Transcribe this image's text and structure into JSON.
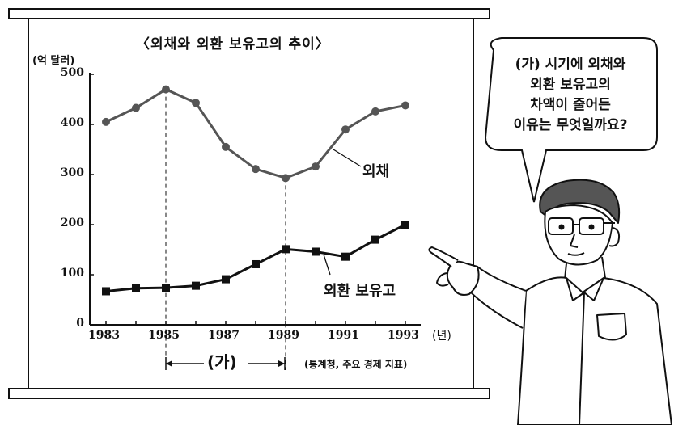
{
  "chart_data": {
    "type": "line",
    "title": "〈외채와 외환 보유고의 추이〉",
    "ylabel": "(억 달러)",
    "xunit": "(년)",
    "ylim": [
      0,
      500
    ],
    "yticks": [
      "500",
      "400",
      "300",
      "200",
      "100",
      "0"
    ],
    "x": [
      1983,
      1984,
      1985,
      1986,
      1987,
      1988,
      1989,
      1990,
      1991,
      1992,
      1993
    ],
    "xticks": [
      "1983",
      "1985",
      "1987",
      "1989",
      "1991",
      "1993"
    ],
    "series": [
      {
        "name": "외채",
        "marker": "circle",
        "color": "#555555",
        "values": [
          405,
          433,
          470,
          443,
          355,
          311,
          293,
          316,
          390,
          426,
          438
        ]
      },
      {
        "name": "외환 보유고",
        "marker": "square",
        "color": "#111111",
        "values": [
          67,
          73,
          74,
          78,
          91,
          121,
          151,
          146,
          136,
          170,
          200
        ]
      }
    ],
    "period_label": "(가)",
    "period": [
      1985,
      1989
    ],
    "source": "(통계청, 주요 경제 지표)"
  },
  "speech_bubble": {
    "lines": [
      "(가) 시기에 외채와",
      "외환 보유고의",
      "차액이 줄어든",
      "이유는 무엇일까요?"
    ]
  }
}
